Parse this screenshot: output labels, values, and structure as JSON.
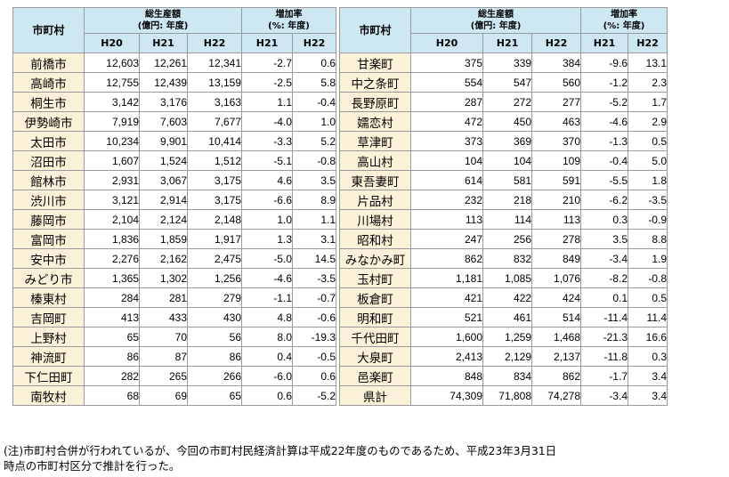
{
  "headers": {
    "city": "市町村",
    "gross_title": "総生産額",
    "gross_unit": "(億円: 年度)",
    "rate_title": "増加率",
    "rate_unit": "(%: 年度)",
    "h20": "H20",
    "h21": "H21",
    "h22": "H22"
  },
  "left_rows": [
    {
      "name": "前橋市",
      "h20": "12,603",
      "h21": "12,261",
      "h22": "12,341",
      "r21": "-2.7",
      "r22": "0.6"
    },
    {
      "name": "高崎市",
      "h20": "12,755",
      "h21": "12,439",
      "h22": "13,159",
      "r21": "-2.5",
      "r22": "5.8"
    },
    {
      "name": "桐生市",
      "h20": "3,142",
      "h21": "3,176",
      "h22": "3,163",
      "r21": "1.1",
      "r22": "-0.4"
    },
    {
      "name": "伊勢崎市",
      "h20": "7,919",
      "h21": "7,603",
      "h22": "7,677",
      "r21": "-4.0",
      "r22": "1.0"
    },
    {
      "name": "太田市",
      "h20": "10,234",
      "h21": "9,901",
      "h22": "10,414",
      "r21": "-3.3",
      "r22": "5.2"
    },
    {
      "name": "沼田市",
      "h20": "1,607",
      "h21": "1,524",
      "h22": "1,512",
      "r21": "-5.1",
      "r22": "-0.8"
    },
    {
      "name": "館林市",
      "h20": "2,931",
      "h21": "3,067",
      "h22": "3,175",
      "r21": "4.6",
      "r22": "3.5"
    },
    {
      "name": "渋川市",
      "h20": "3,121",
      "h21": "2,914",
      "h22": "3,175",
      "r21": "-6.6",
      "r22": "8.9"
    },
    {
      "name": "藤岡市",
      "h20": "2,104",
      "h21": "2,124",
      "h22": "2,148",
      "r21": "1.0",
      "r22": "1.1"
    },
    {
      "name": "富岡市",
      "h20": "1,836",
      "h21": "1,859",
      "h22": "1,917",
      "r21": "1.3",
      "r22": "3.1"
    },
    {
      "name": "安中市",
      "h20": "2,276",
      "h21": "2,162",
      "h22": "2,475",
      "r21": "-5.0",
      "r22": "14.5"
    },
    {
      "name": "みどり市",
      "h20": "1,365",
      "h21": "1,302",
      "h22": "1,256",
      "r21": "-4.6",
      "r22": "-3.5"
    },
    {
      "name": "榛東村",
      "h20": "284",
      "h21": "281",
      "h22": "279",
      "r21": "-1.1",
      "r22": "-0.7"
    },
    {
      "name": "吉岡町",
      "h20": "413",
      "h21": "433",
      "h22": "430",
      "r21": "4.8",
      "r22": "-0.6"
    },
    {
      "name": "上野村",
      "h20": "65",
      "h21": "70",
      "h22": "56",
      "r21": "8.0",
      "r22": "-19.3"
    },
    {
      "name": "神流町",
      "h20": "86",
      "h21": "87",
      "h22": "86",
      "r21": "0.4",
      "r22": "-0.5"
    },
    {
      "name": "下仁田町",
      "h20": "282",
      "h21": "265",
      "h22": "266",
      "r21": "-6.0",
      "r22": "0.6"
    },
    {
      "name": "南牧村",
      "h20": "68",
      "h21": "69",
      "h22": "65",
      "r21": "0.6",
      "r22": "-5.2"
    }
  ],
  "right_rows": [
    {
      "name": "甘楽町",
      "h20": "375",
      "h21": "339",
      "h22": "384",
      "r21": "-9.6",
      "r22": "13.1"
    },
    {
      "name": "中之条町",
      "h20": "554",
      "h21": "547",
      "h22": "560",
      "r21": "-1.2",
      "r22": "2.3"
    },
    {
      "name": "長野原町",
      "h20": "287",
      "h21": "272",
      "h22": "277",
      "r21": "-5.2",
      "r22": "1.7"
    },
    {
      "name": "嬬恋村",
      "h20": "472",
      "h21": "450",
      "h22": "463",
      "r21": "-4.6",
      "r22": "2.9"
    },
    {
      "name": "草津町",
      "h20": "373",
      "h21": "369",
      "h22": "370",
      "r21": "-1.3",
      "r22": "0.5"
    },
    {
      "name": "高山村",
      "h20": "104",
      "h21": "104",
      "h22": "109",
      "r21": "-0.4",
      "r22": "5.0"
    },
    {
      "name": "東吾妻町",
      "h20": "614",
      "h21": "581",
      "h22": "591",
      "r21": "-5.5",
      "r22": "1.8"
    },
    {
      "name": "片品村",
      "h20": "232",
      "h21": "218",
      "h22": "210",
      "r21": "-6.2",
      "r22": "-3.5"
    },
    {
      "name": "川場村",
      "h20": "113",
      "h21": "114",
      "h22": "113",
      "r21": "0.3",
      "r22": "-0.9"
    },
    {
      "name": "昭和村",
      "h20": "247",
      "h21": "256",
      "h22": "278",
      "r21": "3.5",
      "r22": "8.8"
    },
    {
      "name": "みなかみ町",
      "h20": "862",
      "h21": "832",
      "h22": "849",
      "r21": "-3.4",
      "r22": "1.9"
    },
    {
      "name": "玉村町",
      "h20": "1,181",
      "h21": "1,085",
      "h22": "1,076",
      "r21": "-8.2",
      "r22": "-0.8"
    },
    {
      "name": "板倉町",
      "h20": "421",
      "h21": "422",
      "h22": "424",
      "r21": "0.1",
      "r22": "0.5"
    },
    {
      "name": "明和町",
      "h20": "521",
      "h21": "461",
      "h22": "514",
      "r21": "-11.4",
      "r22": "11.4"
    },
    {
      "name": "千代田町",
      "h20": "1,600",
      "h21": "1,259",
      "h22": "1,468",
      "r21": "-21.3",
      "r22": "16.6"
    },
    {
      "name": "大泉町",
      "h20": "2,413",
      "h21": "2,129",
      "h22": "2,137",
      "r21": "-11.8",
      "r22": "0.3"
    },
    {
      "name": "邑楽町",
      "h20": "848",
      "h21": "834",
      "h22": "862",
      "r21": "-1.7",
      "r22": "3.4"
    },
    {
      "name": "県計",
      "h20": "74,309",
      "h21": "71,808",
      "h22": "74,278",
      "r21": "-3.4",
      "r22": "3.4"
    }
  ],
  "note": {
    "line1": "(注)市町村合併が行われているが、今回の市町村民経済計算は平成22年度のものであるため、平成23年3月31日",
    "line2": "時点の市町村区分で推計を行った。"
  },
  "colors": {
    "header_bg": "#cde7f3",
    "name_bg": "#fbf0d8",
    "border": "#9a9a9a"
  }
}
